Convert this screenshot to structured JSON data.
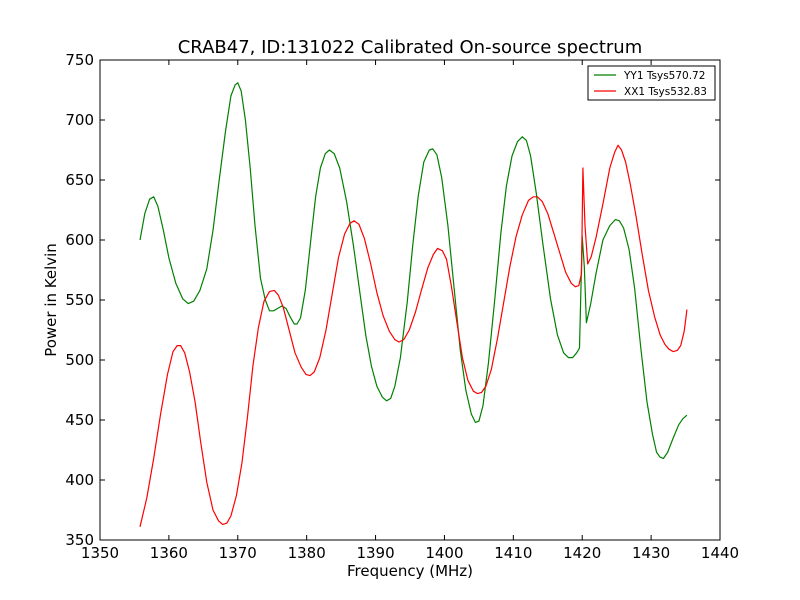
{
  "chart_data": {
    "type": "line",
    "title": "CRAB47, ID:131022 Calibrated On-source spectrum",
    "xlabel": "Frequency (MHz)",
    "ylabel": "Power in Kelvin",
    "xlim": [
      1350,
      1440
    ],
    "ylim": [
      350,
      750
    ],
    "xticks": [
      1350,
      1360,
      1370,
      1380,
      1390,
      1400,
      1410,
      1420,
      1430,
      1440
    ],
    "yticks": [
      350,
      400,
      450,
      500,
      550,
      600,
      650,
      700,
      750
    ],
    "grid": false,
    "legend_position": "top-right",
    "series": [
      {
        "name": "YY1 Tsys570.72",
        "color": "#008000",
        "points": [
          [
            1355.8,
            600
          ],
          [
            1356.5,
            622
          ],
          [
            1357.2,
            634
          ],
          [
            1357.8,
            636
          ],
          [
            1358.4,
            628
          ],
          [
            1359.2,
            608
          ],
          [
            1360.0,
            585
          ],
          [
            1361.0,
            564
          ],
          [
            1362.0,
            551
          ],
          [
            1362.8,
            547
          ],
          [
            1363.6,
            549
          ],
          [
            1364.5,
            558
          ],
          [
            1365.5,
            576
          ],
          [
            1366.4,
            608
          ],
          [
            1367.3,
            650
          ],
          [
            1368.2,
            690
          ],
          [
            1369.0,
            720
          ],
          [
            1369.6,
            729
          ],
          [
            1370.0,
            731
          ],
          [
            1370.5,
            724
          ],
          [
            1371.1,
            700
          ],
          [
            1371.8,
            660
          ],
          [
            1372.5,
            612
          ],
          [
            1373.3,
            568
          ],
          [
            1374.0,
            550
          ],
          [
            1374.6,
            541
          ],
          [
            1375.2,
            541
          ],
          [
            1375.8,
            543
          ],
          [
            1376.4,
            545
          ],
          [
            1377.0,
            543
          ],
          [
            1377.6,
            536
          ],
          [
            1378.2,
            530
          ],
          [
            1378.6,
            530
          ],
          [
            1379.1,
            535
          ],
          [
            1379.8,
            558
          ],
          [
            1380.6,
            600
          ],
          [
            1381.3,
            636
          ],
          [
            1382.0,
            660
          ],
          [
            1382.7,
            672
          ],
          [
            1383.3,
            675
          ],
          [
            1384.0,
            672
          ],
          [
            1384.8,
            660
          ],
          [
            1385.8,
            632
          ],
          [
            1386.8,
            595
          ],
          [
            1387.8,
            553
          ],
          [
            1388.6,
            520
          ],
          [
            1389.4,
            495
          ],
          [
            1390.2,
            478
          ],
          [
            1391.0,
            469
          ],
          [
            1391.6,
            466
          ],
          [
            1392.2,
            468
          ],
          [
            1392.8,
            478
          ],
          [
            1393.6,
            502
          ],
          [
            1394.6,
            548
          ],
          [
            1395.4,
            596
          ],
          [
            1396.2,
            637
          ],
          [
            1397.0,
            665
          ],
          [
            1397.8,
            675
          ],
          [
            1398.3,
            676
          ],
          [
            1398.9,
            671
          ],
          [
            1399.6,
            652
          ],
          [
            1400.5,
            612
          ],
          [
            1401.4,
            560
          ],
          [
            1402.3,
            508
          ],
          [
            1403.1,
            475
          ],
          [
            1403.9,
            455
          ],
          [
            1404.5,
            448
          ],
          [
            1405.0,
            449
          ],
          [
            1405.6,
            462
          ],
          [
            1406.4,
            498
          ],
          [
            1407.3,
            550
          ],
          [
            1408.2,
            606
          ],
          [
            1409.0,
            645
          ],
          [
            1409.8,
            670
          ],
          [
            1410.6,
            682
          ],
          [
            1411.3,
            686
          ],
          [
            1411.9,
            683
          ],
          [
            1412.5,
            670
          ],
          [
            1413.3,
            640
          ],
          [
            1414.3,
            596
          ],
          [
            1415.4,
            551
          ],
          [
            1416.4,
            521
          ],
          [
            1417.3,
            506
          ],
          [
            1418.0,
            502
          ],
          [
            1418.6,
            502
          ],
          [
            1419.2,
            506
          ],
          [
            1419.6,
            510
          ],
          [
            1420.0,
            603
          ],
          [
            1420.3,
            578
          ],
          [
            1420.6,
            531
          ],
          [
            1421.2,
            546
          ],
          [
            1422.0,
            572
          ],
          [
            1423.0,
            600
          ],
          [
            1424.0,
            612
          ],
          [
            1424.8,
            617
          ],
          [
            1425.4,
            616
          ],
          [
            1426.0,
            610
          ],
          [
            1426.8,
            592
          ],
          [
            1427.6,
            560
          ],
          [
            1428.5,
            510
          ],
          [
            1429.4,
            465
          ],
          [
            1430.2,
            438
          ],
          [
            1430.8,
            423
          ],
          [
            1431.3,
            419
          ],
          [
            1431.8,
            418
          ],
          [
            1432.4,
            423
          ],
          [
            1433.2,
            435
          ],
          [
            1434.0,
            446
          ],
          [
            1434.6,
            451
          ],
          [
            1435.2,
            454
          ]
        ]
      },
      {
        "name": "XX1 Tsys532.83",
        "color": "#ff0000",
        "points": [
          [
            1355.8,
            361
          ],
          [
            1356.8,
            385
          ],
          [
            1357.8,
            418
          ],
          [
            1358.8,
            455
          ],
          [
            1359.8,
            488
          ],
          [
            1360.6,
            507
          ],
          [
            1361.2,
            512
          ],
          [
            1361.7,
            512
          ],
          [
            1362.3,
            506
          ],
          [
            1363.0,
            490
          ],
          [
            1363.8,
            465
          ],
          [
            1364.6,
            432
          ],
          [
            1365.5,
            398
          ],
          [
            1366.4,
            375
          ],
          [
            1367.2,
            366
          ],
          [
            1367.8,
            363
          ],
          [
            1368.4,
            364
          ],
          [
            1369.0,
            370
          ],
          [
            1369.8,
            387
          ],
          [
            1370.6,
            414
          ],
          [
            1371.4,
            452
          ],
          [
            1372.2,
            495
          ],
          [
            1373.0,
            527
          ],
          [
            1373.8,
            549
          ],
          [
            1374.6,
            557
          ],
          [
            1375.3,
            558
          ],
          [
            1375.9,
            554
          ],
          [
            1376.6,
            544
          ],
          [
            1377.4,
            526
          ],
          [
            1378.3,
            506
          ],
          [
            1379.2,
            494
          ],
          [
            1379.9,
            488
          ],
          [
            1380.5,
            487
          ],
          [
            1381.1,
            490
          ],
          [
            1381.9,
            502
          ],
          [
            1382.8,
            525
          ],
          [
            1383.7,
            555
          ],
          [
            1384.6,
            585
          ],
          [
            1385.5,
            605
          ],
          [
            1386.3,
            614
          ],
          [
            1386.9,
            616
          ],
          [
            1387.6,
            613
          ],
          [
            1388.4,
            601
          ],
          [
            1389.3,
            580
          ],
          [
            1390.2,
            556
          ],
          [
            1391.1,
            537
          ],
          [
            1392.0,
            524
          ],
          [
            1392.8,
            517
          ],
          [
            1393.4,
            515
          ],
          [
            1394.1,
            517
          ],
          [
            1394.9,
            525
          ],
          [
            1395.8,
            540
          ],
          [
            1396.7,
            559
          ],
          [
            1397.6,
            577
          ],
          [
            1398.4,
            588
          ],
          [
            1399.0,
            593
          ],
          [
            1399.7,
            591
          ],
          [
            1400.3,
            584
          ],
          [
            1401.0,
            562
          ],
          [
            1401.8,
            532
          ],
          [
            1402.6,
            502
          ],
          [
            1403.4,
            483
          ],
          [
            1404.2,
            474
          ],
          [
            1404.8,
            472
          ],
          [
            1405.4,
            473
          ],
          [
            1406.0,
            478
          ],
          [
            1406.8,
            492
          ],
          [
            1407.7,
            518
          ],
          [
            1408.6,
            548
          ],
          [
            1409.5,
            578
          ],
          [
            1410.4,
            603
          ],
          [
            1411.3,
            621
          ],
          [
            1412.2,
            633
          ],
          [
            1412.9,
            636
          ],
          [
            1413.5,
            636
          ],
          [
            1414.2,
            632
          ],
          [
            1415.0,
            622
          ],
          [
            1415.8,
            607
          ],
          [
            1416.7,
            590
          ],
          [
            1417.6,
            573
          ],
          [
            1418.4,
            564
          ],
          [
            1419.0,
            561
          ],
          [
            1419.5,
            562
          ],
          [
            1419.9,
            572
          ],
          [
            1420.1,
            660
          ],
          [
            1420.4,
            612
          ],
          [
            1420.8,
            580
          ],
          [
            1421.3,
            586
          ],
          [
            1422.0,
            602
          ],
          [
            1423.0,
            630
          ],
          [
            1424.0,
            660
          ],
          [
            1424.7,
            673
          ],
          [
            1425.2,
            679
          ],
          [
            1425.7,
            675
          ],
          [
            1426.3,
            665
          ],
          [
            1427.0,
            646
          ],
          [
            1427.8,
            620
          ],
          [
            1428.7,
            588
          ],
          [
            1429.6,
            558
          ],
          [
            1430.5,
            536
          ],
          [
            1431.3,
            521
          ],
          [
            1432.0,
            513
          ],
          [
            1432.6,
            509
          ],
          [
            1433.2,
            507
          ],
          [
            1433.8,
            508
          ],
          [
            1434.3,
            512
          ],
          [
            1434.8,
            524
          ],
          [
            1435.1,
            537
          ],
          [
            1435.2,
            542
          ]
        ]
      }
    ]
  }
}
